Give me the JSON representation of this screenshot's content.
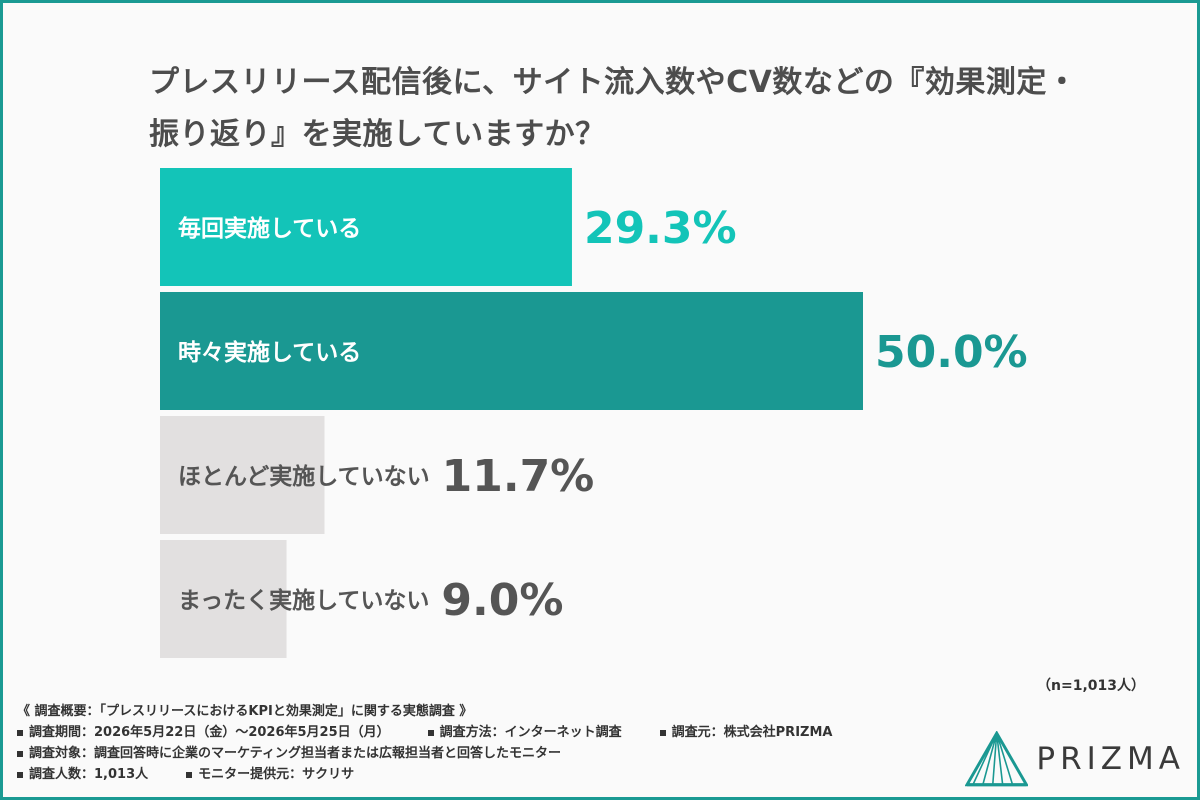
{
  "title": {
    "line1": "プレスリリース配信後に、サイト流入数やCV数などの『効果測定・",
    "line2": "振り返り』を実施していますか？"
  },
  "chart_data": {
    "type": "bar",
    "orientation": "horizontal",
    "categories": [
      "毎回実施している",
      "時々実施している",
      "ほとんど実施していない",
      "まったく実施していない"
    ],
    "values": [
      29.3,
      50.0,
      11.7,
      9.0
    ],
    "value_labels": [
      "29.3%",
      "50.0%",
      "11.7%",
      "9.0%"
    ],
    "colors": [
      "#13c4b8",
      "#1a9892",
      "#e2e0e0",
      "#e2e0e0"
    ],
    "label_colors": [
      "#ffffff",
      "#ffffff",
      "#555555",
      "#555555"
    ],
    "value_colors": [
      "#13c4b8",
      "#1a9892",
      "#555555",
      "#555555"
    ],
    "xlim": [
      0,
      50
    ],
    "grid": false,
    "legend": "none"
  },
  "sample_note": "（n=1,013人）",
  "survey": {
    "heading": "《 調査概要：「プレスリリースにおけるKPIと効果測定」に関する実態調査 》",
    "period": "調査期間：2026年5月22日（金）～2026年5月25日（月）",
    "method": "調査方法：インターネット調査",
    "organizer": "調査元：株式会社PRIZMA",
    "target": "調査対象：調査回答時に企業のマーケティング担当者または広報担当者と回答したモニター",
    "count": "調査人数：1,013人",
    "provider": "モニター提供元：サクリサ"
  },
  "logo": {
    "text": "PRIZMA",
    "icon": "prizma-logo-icon",
    "color": "#1a9892"
  }
}
